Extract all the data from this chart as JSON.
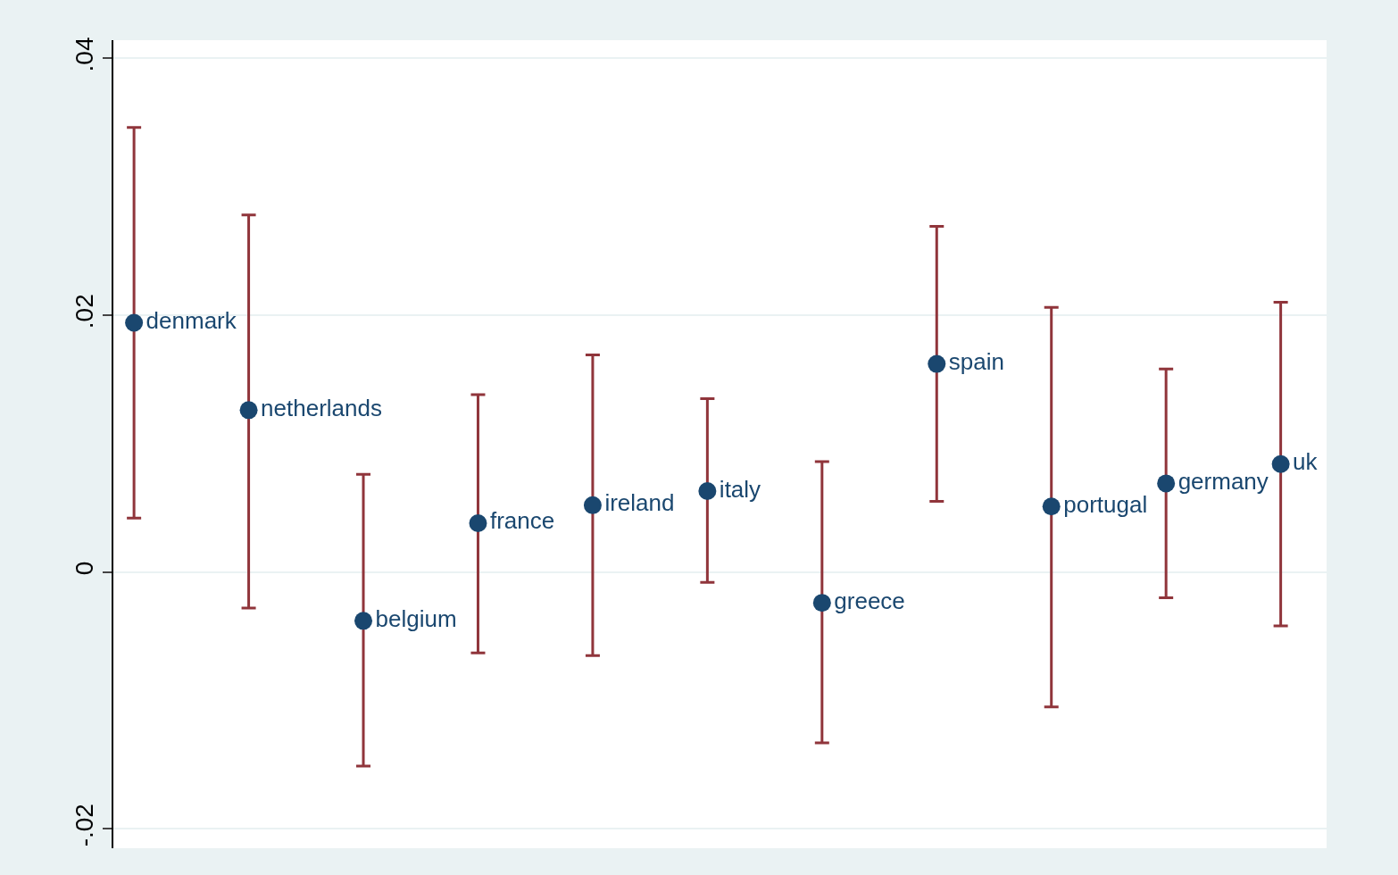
{
  "chart_data": {
    "type": "scatter",
    "categories": [
      null,
      null,
      null,
      null,
      null,
      null,
      null,
      null,
      null,
      null,
      null
    ],
    "ylim": [
      -0.0215,
      0.0414
    ],
    "yticks": [
      {
        "value": -0.02,
        "label": "-.02"
      },
      0,
      {
        "value": 0.02,
        "label": ".02"
      },
      {
        "value": 0.04,
        "label": ".04"
      }
    ],
    "grid": "y",
    "legend": false,
    "marker": "circle",
    "tick_labels": "y",
    "series": [
      {
        "name": "denmark",
        "color": "#1a476f",
        "values": [
          0.0194,
          null,
          null,
          null,
          null,
          null,
          null,
          null,
          null,
          null,
          null
        ],
        "errors": [
          [
            0.0042,
            0.0346
          ],
          null,
          null,
          null,
          null,
          null,
          null,
          null,
          null,
          null,
          null
        ]
      },
      {
        "name": "netherlands",
        "color": "#1a476f",
        "values": [
          null,
          0.0126,
          null,
          null,
          null,
          null,
          null,
          null,
          null,
          null,
          null
        ],
        "errors": [
          null,
          [
            -0.0028,
            0.0278
          ],
          null,
          null,
          null,
          null,
          null,
          null,
          null,
          null,
          null
        ]
      },
      {
        "name": "belgium",
        "color": "#1a476f",
        "values": [
          null,
          null,
          -0.0038,
          null,
          null,
          null,
          null,
          null,
          null,
          null,
          null
        ],
        "errors": [
          null,
          null,
          [
            -0.0151,
            0.0076
          ],
          null,
          null,
          null,
          null,
          null,
          null,
          null,
          null
        ]
      },
      {
        "name": "france",
        "color": "#1a476f",
        "values": [
          null,
          null,
          null,
          0.0038,
          null,
          null,
          null,
          null,
          null,
          null,
          null
        ],
        "errors": [
          null,
          null,
          null,
          [
            -0.0063,
            0.0138
          ],
          null,
          null,
          null,
          null,
          null,
          null,
          null
        ]
      },
      {
        "name": "ireland",
        "color": "#1a476f",
        "values": [
          null,
          null,
          null,
          null,
          0.0052,
          null,
          null,
          null,
          null,
          null,
          null
        ],
        "errors": [
          null,
          null,
          null,
          null,
          [
            -0.0065,
            0.0169
          ],
          null,
          null,
          null,
          null,
          null,
          null
        ]
      },
      {
        "name": "italy",
        "color": "#1a476f",
        "values": [
          null,
          null,
          null,
          null,
          null,
          0.0063,
          null,
          null,
          null,
          null,
          null
        ],
        "errors": [
          null,
          null,
          null,
          null,
          null,
          [
            -0.0008,
            0.0135
          ],
          null,
          null,
          null,
          null,
          null
        ]
      },
      {
        "name": "greece",
        "color": "#1a476f",
        "values": [
          null,
          null,
          null,
          null,
          null,
          null,
          -0.0024,
          null,
          null,
          null,
          null
        ],
        "errors": [
          null,
          null,
          null,
          null,
          null,
          null,
          [
            -0.0133,
            0.0086
          ],
          null,
          null,
          null,
          null
        ]
      },
      {
        "name": "spain",
        "color": "#1a476f",
        "values": [
          null,
          null,
          null,
          null,
          null,
          null,
          null,
          0.0162,
          null,
          null,
          null
        ],
        "errors": [
          null,
          null,
          null,
          null,
          null,
          null,
          null,
          [
            0.0055,
            0.0269
          ],
          null,
          null,
          null
        ]
      },
      {
        "name": "portugal",
        "color": "#1a476f",
        "values": [
          null,
          null,
          null,
          null,
          null,
          null,
          null,
          null,
          0.0051,
          null,
          null
        ],
        "errors": [
          null,
          null,
          null,
          null,
          null,
          null,
          null,
          null,
          [
            -0.0105,
            0.0206
          ],
          null,
          null
        ]
      },
      {
        "name": "germany",
        "color": "#1a476f",
        "values": [
          null,
          null,
          null,
          null,
          null,
          null,
          null,
          null,
          null,
          0.0069,
          null
        ],
        "errors": [
          null,
          null,
          null,
          null,
          null,
          null,
          null,
          null,
          null,
          [
            -0.002,
            0.0158
          ],
          null
        ]
      },
      {
        "name": "uk",
        "color": "#1a476f",
        "values": [
          null,
          null,
          null,
          null,
          null,
          null,
          null,
          null,
          null,
          null,
          0.0084
        ],
        "errors": [
          null,
          null,
          null,
          null,
          null,
          null,
          null,
          null,
          null,
          null,
          [
            -0.0042,
            0.021
          ]
        ]
      }
    ]
  }
}
